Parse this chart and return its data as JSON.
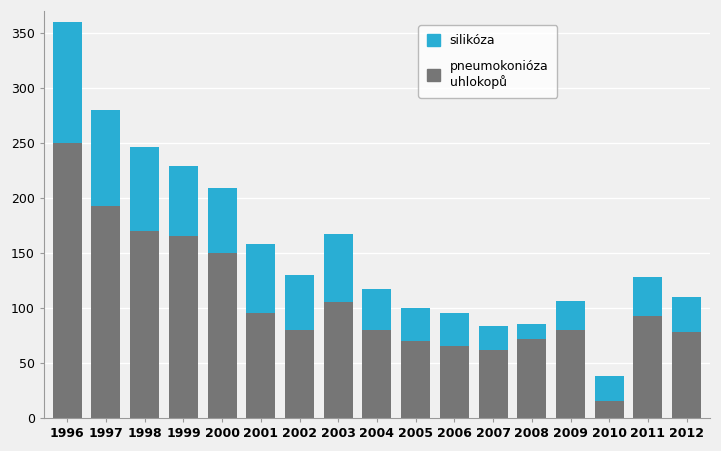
{
  "years": [
    1996,
    1997,
    1998,
    1999,
    2000,
    2001,
    2002,
    2003,
    2004,
    2005,
    2006,
    2007,
    2008,
    2009,
    2010,
    2011,
    2012
  ],
  "silikoza": [
    110,
    87,
    76,
    64,
    59,
    63,
    50,
    62,
    37,
    30,
    30,
    22,
    13,
    26,
    23,
    35,
    32
  ],
  "pneumokonioza": [
    250,
    193,
    170,
    165,
    150,
    95,
    80,
    105,
    80,
    70,
    65,
    62,
    72,
    80,
    15,
    93,
    78
  ],
  "color_silikoza": "#29aed4",
  "color_pneumokonioza": "#767676",
  "legend_silikoza": "silikóza",
  "legend_pneumokonioza": "pneumokonióza\nuhlokopů",
  "ylim": [
    0,
    370
  ],
  "yticks": [
    0,
    50,
    100,
    150,
    200,
    250,
    300,
    350
  ],
  "background_color": "#f0f0f0",
  "plot_bg_color": "#f0f0f0",
  "grid_color": "#ffffff",
  "bar_width": 0.75,
  "tick_fontsize": 9,
  "legend_fontsize": 9
}
